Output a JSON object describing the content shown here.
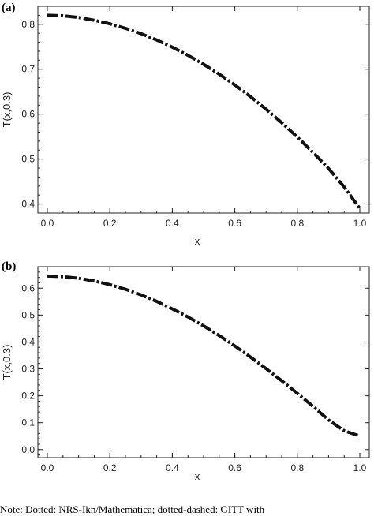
{
  "panels": {
    "a": {
      "label": "(a)"
    },
    "b": {
      "label": "(b)"
    }
  },
  "note_fragment": "Note: Dotted: NRS-Ikn/Mathematica; dotted-dashed: GITT with",
  "chart_data": [
    {
      "type": "line",
      "xlabel": "x",
      "ylabel": "T(x,0.3)",
      "xlim": [
        0.0,
        1.0
      ],
      "ylim": [
        0.38,
        0.84
      ],
      "xticks": [
        "0.0",
        "0.2",
        "0.4",
        "0.6",
        "0.8",
        "1.0"
      ],
      "yticks": [
        "0.4",
        "0.5",
        "0.6",
        "0.7",
        "0.8"
      ],
      "grid": false,
      "series": [
        {
          "style": "dotted-dashed",
          "x": [
            0.0,
            0.05,
            0.1,
            0.15,
            0.2,
            0.25,
            0.3,
            0.35,
            0.4,
            0.45,
            0.5,
            0.55,
            0.6,
            0.65,
            0.7,
            0.75,
            0.8,
            0.85,
            0.9,
            0.95,
            1.0
          ],
          "y": [
            0.82,
            0.819,
            0.815,
            0.809,
            0.801,
            0.791,
            0.779,
            0.765,
            0.749,
            0.731,
            0.711,
            0.689,
            0.665,
            0.639,
            0.611,
            0.581,
            0.549,
            0.515,
            0.479,
            0.438,
            0.39
          ]
        }
      ]
    },
    {
      "type": "line",
      "xlabel": "x",
      "ylabel": "T(x,0.3)",
      "xlim": [
        0.0,
        1.0
      ],
      "ylim": [
        -0.03,
        0.68
      ],
      "xticks": [
        "0.0",
        "0.2",
        "0.4",
        "0.6",
        "0.8",
        "1.0"
      ],
      "yticks": [
        "0.0",
        "0.1",
        "0.2",
        "0.3",
        "0.4",
        "0.5",
        "0.6"
      ],
      "grid": false,
      "series": [
        {
          "style": "dotted-dashed",
          "x": [
            0.0,
            0.05,
            0.1,
            0.15,
            0.2,
            0.25,
            0.3,
            0.35,
            0.4,
            0.45,
            0.5,
            0.55,
            0.6,
            0.65,
            0.7,
            0.75,
            0.8,
            0.85,
            0.9,
            0.95,
            1.0
          ],
          "y": [
            0.645,
            0.643,
            0.637,
            0.627,
            0.613,
            0.596,
            0.575,
            0.551,
            0.523,
            0.493,
            0.46,
            0.424,
            0.385,
            0.344,
            0.301,
            0.256,
            0.209,
            0.161,
            0.11,
            0.07,
            0.05
          ]
        }
      ]
    }
  ]
}
